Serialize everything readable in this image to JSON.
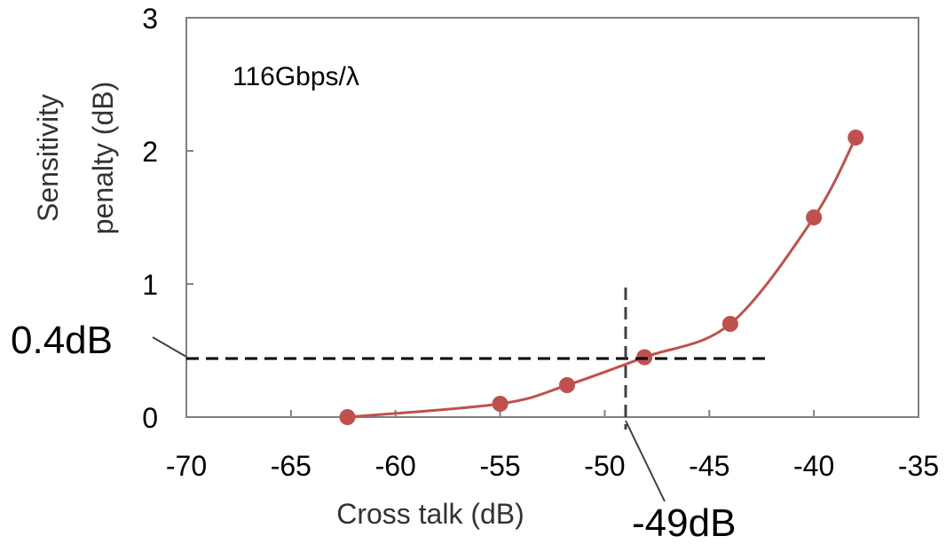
{
  "chart_data": {
    "type": "line",
    "xlabel": "Cross talk (dB)",
    "ylabel_lines": [
      "Sensitivity",
      "penalty (dB)"
    ],
    "xlim": [
      -70,
      -35
    ],
    "ylim": [
      0,
      3
    ],
    "x_ticks": [
      -70,
      -65,
      -60,
      -55,
      -50,
      -45,
      -40,
      -35
    ],
    "y_ticks": [
      0,
      1,
      2,
      3
    ],
    "grid": false,
    "series": [
      {
        "color": "#c0504d",
        "marker": "circle",
        "smooth": true,
        "x": [
          -62.3,
          -55.0,
          -51.8,
          -48.1,
          -44.0,
          -40.0,
          -38.0
        ],
        "y": [
          0.0,
          0.1,
          0.24,
          0.45,
          0.7,
          1.5,
          2.1
        ]
      }
    ],
    "annotations": {
      "inset_label": "116Gbps/λ",
      "hline_value": 0.44,
      "hline_label": "0.4dB",
      "vline_value": -49,
      "vline_label": "-49dB"
    }
  }
}
